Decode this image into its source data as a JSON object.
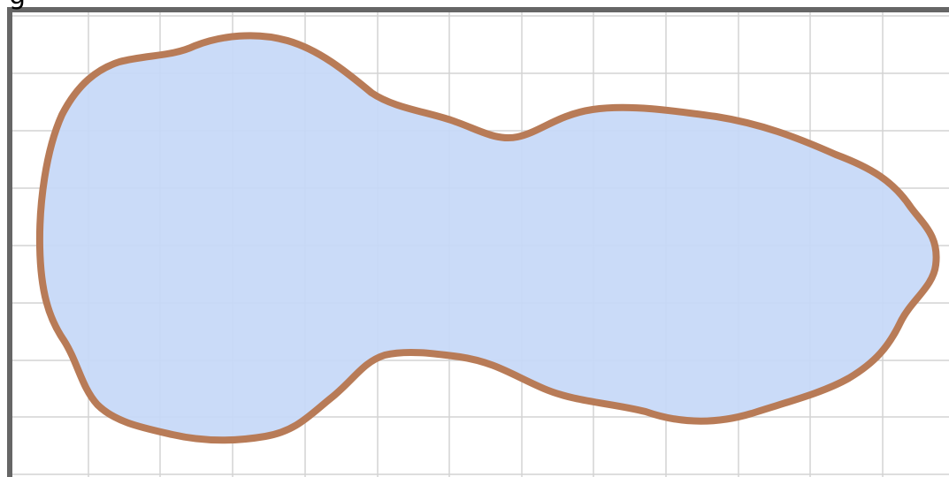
{
  "caption": "g"
}
